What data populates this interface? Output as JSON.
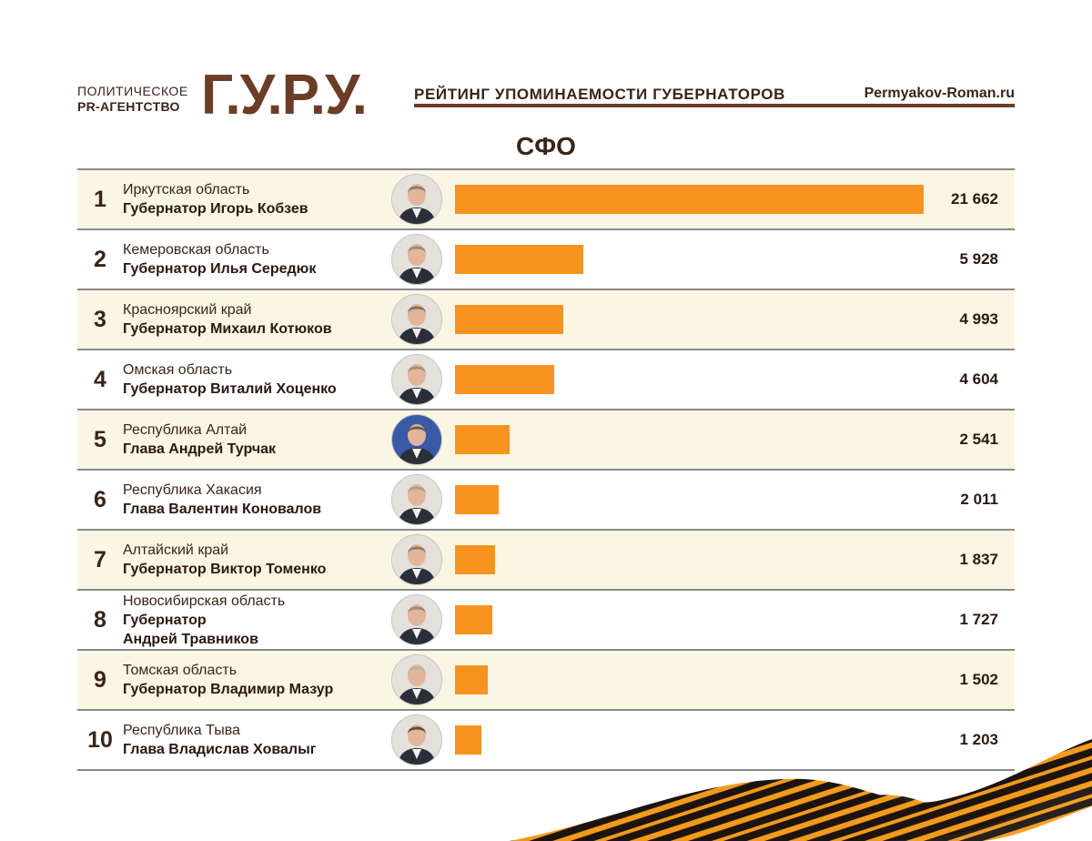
{
  "header": {
    "agency_line1": "ПОЛИТИЧЕСКОЕ",
    "agency_line2": "PR-АГЕНТСТВО",
    "logo": "Г.У.Р.У.",
    "rating_title": "РЕЙТИНГ УПОМИНАЕМОСТИ ГУБЕРНАТОРОВ",
    "site": "Permyakov-Roman.ru"
  },
  "region": "СФО",
  "colors": {
    "bar": "#f7931e",
    "accent": "#6b3d26",
    "alt_row": "#fbf6e4"
  },
  "chart_data": {
    "type": "bar",
    "orientation": "horizontal",
    "title": "СФО",
    "xlim": [
      0,
      21662
    ],
    "rows": [
      {
        "rank": "1",
        "region": "Иркутская область",
        "governor": [
          "Губернатор Игорь Кобзев"
        ],
        "value": 21662,
        "label": "21 662"
      },
      {
        "rank": "2",
        "region": "Кемеровская область",
        "governor": [
          "Губернатор Илья Середюк"
        ],
        "value": 5928,
        "label": "5 928"
      },
      {
        "rank": "3",
        "region": "Красноярский край",
        "governor": [
          "Губернатор Михаил Котюков"
        ],
        "value": 4993,
        "label": "4 993"
      },
      {
        "rank": "4",
        "region": "Омская область",
        "governor": [
          "Губернатор Виталий Хоценко"
        ],
        "value": 4604,
        "label": "4 604"
      },
      {
        "rank": "5",
        "region": "Республика Алтай",
        "governor": [
          "Глава Андрей Турчак"
        ],
        "value": 2541,
        "label": "2 541"
      },
      {
        "rank": "6",
        "region": "Республика Хакасия",
        "governor": [
          "Глава Валентин Коновалов"
        ],
        "value": 2011,
        "label": "2 011"
      },
      {
        "rank": "7",
        "region": "Алтайский край",
        "governor": [
          "Губернатор Виктор Томенко"
        ],
        "value": 1837,
        "label": "1 837"
      },
      {
        "rank": "8",
        "region": "Новосибирская область",
        "governor": [
          "Губернатор",
          "Андрей Травников"
        ],
        "value": 1727,
        "label": "1 727"
      },
      {
        "rank": "9",
        "region": "Томская область",
        "governor": [
          "Губернатор Владимир Мазур"
        ],
        "value": 1502,
        "label": "1 502"
      },
      {
        "rank": "10",
        "region": "Республика Тыва",
        "governor": [
          "Глава Владислав Ховалыг"
        ],
        "value": 1203,
        "label": "1 203"
      }
    ]
  }
}
